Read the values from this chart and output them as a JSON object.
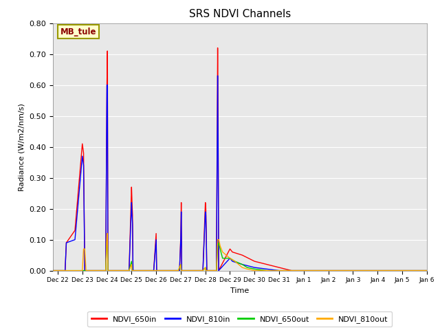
{
  "title": "SRS NDVI Channels",
  "xlabel": "Time",
  "ylabel": "Radiance (W/m2/nm/s)",
  "annotation": "MB_tule",
  "ylim": [
    0.0,
    0.8
  ],
  "yticks": [
    0.0,
    0.1,
    0.2,
    0.3,
    0.4,
    0.5,
    0.6,
    0.7,
    0.8
  ],
  "background_color": "#e8e8e8",
  "xlim": [
    21.8,
    37.0
  ],
  "series": {
    "NDVI_650in": {
      "color": "#ff0000",
      "data": [
        [
          21.8,
          0.0
        ],
        [
          22.3,
          0.0
        ],
        [
          22.35,
          0.09
        ],
        [
          22.7,
          0.13
        ],
        [
          23.0,
          0.41
        ],
        [
          23.05,
          0.38
        ],
        [
          23.1,
          0.0
        ],
        [
          23.95,
          0.0
        ],
        [
          24.0,
          0.6
        ],
        [
          24.02,
          0.71
        ],
        [
          24.04,
          0.0
        ],
        [
          24.9,
          0.0
        ],
        [
          25.0,
          0.27
        ],
        [
          25.02,
          0.22
        ],
        [
          25.04,
          0.18
        ],
        [
          25.06,
          0.0
        ],
        [
          25.9,
          0.0
        ],
        [
          26.0,
          0.12
        ],
        [
          26.02,
          0.0
        ],
        [
          26.95,
          0.0
        ],
        [
          27.0,
          0.11
        ],
        [
          27.02,
          0.22
        ],
        [
          27.04,
          0.0
        ],
        [
          27.9,
          0.0
        ],
        [
          28.0,
          0.22
        ],
        [
          28.02,
          0.2
        ],
        [
          28.04,
          0.11
        ],
        [
          28.06,
          0.0
        ],
        [
          28.45,
          0.0
        ],
        [
          28.5,
          0.72
        ],
        [
          28.52,
          0.45
        ],
        [
          28.54,
          0.0
        ],
        [
          29.0,
          0.07
        ],
        [
          29.1,
          0.06
        ],
        [
          29.5,
          0.05
        ],
        [
          30.0,
          0.03
        ],
        [
          30.5,
          0.02
        ],
        [
          31.0,
          0.01
        ],
        [
          31.5,
          0.0
        ],
        [
          37.0,
          0.0
        ]
      ]
    },
    "NDVI_810in": {
      "color": "#0000ff",
      "data": [
        [
          21.8,
          0.0
        ],
        [
          22.3,
          0.0
        ],
        [
          22.35,
          0.09
        ],
        [
          22.7,
          0.1
        ],
        [
          23.0,
          0.37
        ],
        [
          23.05,
          0.34
        ],
        [
          23.1,
          0.0
        ],
        [
          23.95,
          0.0
        ],
        [
          24.0,
          0.6
        ],
        [
          24.02,
          0.6
        ],
        [
          24.04,
          0.0
        ],
        [
          24.9,
          0.0
        ],
        [
          25.0,
          0.22
        ],
        [
          25.02,
          0.18
        ],
        [
          25.04,
          0.15
        ],
        [
          25.06,
          0.0
        ],
        [
          25.9,
          0.0
        ],
        [
          26.0,
          0.1
        ],
        [
          26.02,
          0.0
        ],
        [
          26.95,
          0.0
        ],
        [
          27.0,
          0.1
        ],
        [
          27.02,
          0.19
        ],
        [
          27.04,
          0.0
        ],
        [
          27.9,
          0.0
        ],
        [
          28.0,
          0.19
        ],
        [
          28.02,
          0.18
        ],
        [
          28.04,
          0.1
        ],
        [
          28.06,
          0.0
        ],
        [
          28.45,
          0.0
        ],
        [
          28.5,
          0.63
        ],
        [
          28.52,
          0.4
        ],
        [
          28.54,
          0.0
        ],
        [
          29.0,
          0.04
        ],
        [
          29.1,
          0.03
        ],
        [
          29.5,
          0.02
        ],
        [
          30.0,
          0.01
        ],
        [
          30.5,
          0.005
        ],
        [
          31.0,
          0.0
        ],
        [
          37.0,
          0.0
        ]
      ]
    },
    "NDVI_650out": {
      "color": "#00cc00",
      "data": [
        [
          21.8,
          0.0
        ],
        [
          22.0,
          0.0
        ],
        [
          23.95,
          0.0
        ],
        [
          24.0,
          0.1
        ],
        [
          24.02,
          0.1
        ],
        [
          24.04,
          0.0
        ],
        [
          24.9,
          0.0
        ],
        [
          25.0,
          0.03
        ],
        [
          25.02,
          0.0
        ],
        [
          26.9,
          0.0
        ],
        [
          27.0,
          0.02
        ],
        [
          27.02,
          0.0
        ],
        [
          27.9,
          0.0
        ],
        [
          28.0,
          0.01
        ],
        [
          28.02,
          0.0
        ],
        [
          28.45,
          0.0
        ],
        [
          28.5,
          0.08
        ],
        [
          28.55,
          0.09
        ],
        [
          28.6,
          0.07
        ],
        [
          28.7,
          0.04
        ],
        [
          29.0,
          0.04
        ],
        [
          29.2,
          0.03
        ],
        [
          29.5,
          0.02
        ],
        [
          29.7,
          0.01
        ],
        [
          30.0,
          0.005
        ],
        [
          30.5,
          0.0
        ],
        [
          37.0,
          0.0
        ]
      ]
    },
    "NDVI_810out": {
      "color": "#ffaa00",
      "data": [
        [
          21.8,
          0.0
        ],
        [
          22.0,
          0.0
        ],
        [
          23.0,
          0.0
        ],
        [
          23.05,
          0.07
        ],
        [
          23.1,
          0.07
        ],
        [
          23.15,
          0.0
        ],
        [
          23.95,
          0.0
        ],
        [
          24.0,
          0.12
        ],
        [
          24.02,
          0.12
        ],
        [
          24.04,
          0.0
        ],
        [
          24.9,
          0.0
        ],
        [
          25.0,
          0.02
        ],
        [
          25.02,
          0.0
        ],
        [
          26.9,
          0.0
        ],
        [
          27.0,
          0.02
        ],
        [
          27.02,
          0.0
        ],
        [
          27.9,
          0.0
        ],
        [
          28.0,
          0.01
        ],
        [
          28.02,
          0.0
        ],
        [
          28.45,
          0.0
        ],
        [
          28.5,
          0.1
        ],
        [
          28.55,
          0.1
        ],
        [
          28.6,
          0.08
        ],
        [
          28.7,
          0.06
        ],
        [
          29.0,
          0.04
        ],
        [
          29.2,
          0.03
        ],
        [
          29.5,
          0.01
        ],
        [
          29.7,
          0.005
        ],
        [
          30.0,
          0.0
        ],
        [
          37.0,
          0.0
        ]
      ]
    }
  },
  "xtick_labels": [
    "Dec 22",
    "Dec 23",
    "Dec 24",
    "Dec 25",
    "Dec 26",
    "Dec 27",
    "Dec 28",
    "Dec 29",
    "Dec 30",
    "Dec 31",
    "Jan 1",
    "Jan 2",
    "Jan 3",
    "Jan 4",
    "Jan 5",
    "Jan 6"
  ],
  "legend_entries": [
    "NDVI_650in",
    "NDVI_810in",
    "NDVI_650out",
    "NDVI_810out"
  ],
  "legend_colors": [
    "#ff0000",
    "#0000ff",
    "#00cc00",
    "#ffaa00"
  ]
}
